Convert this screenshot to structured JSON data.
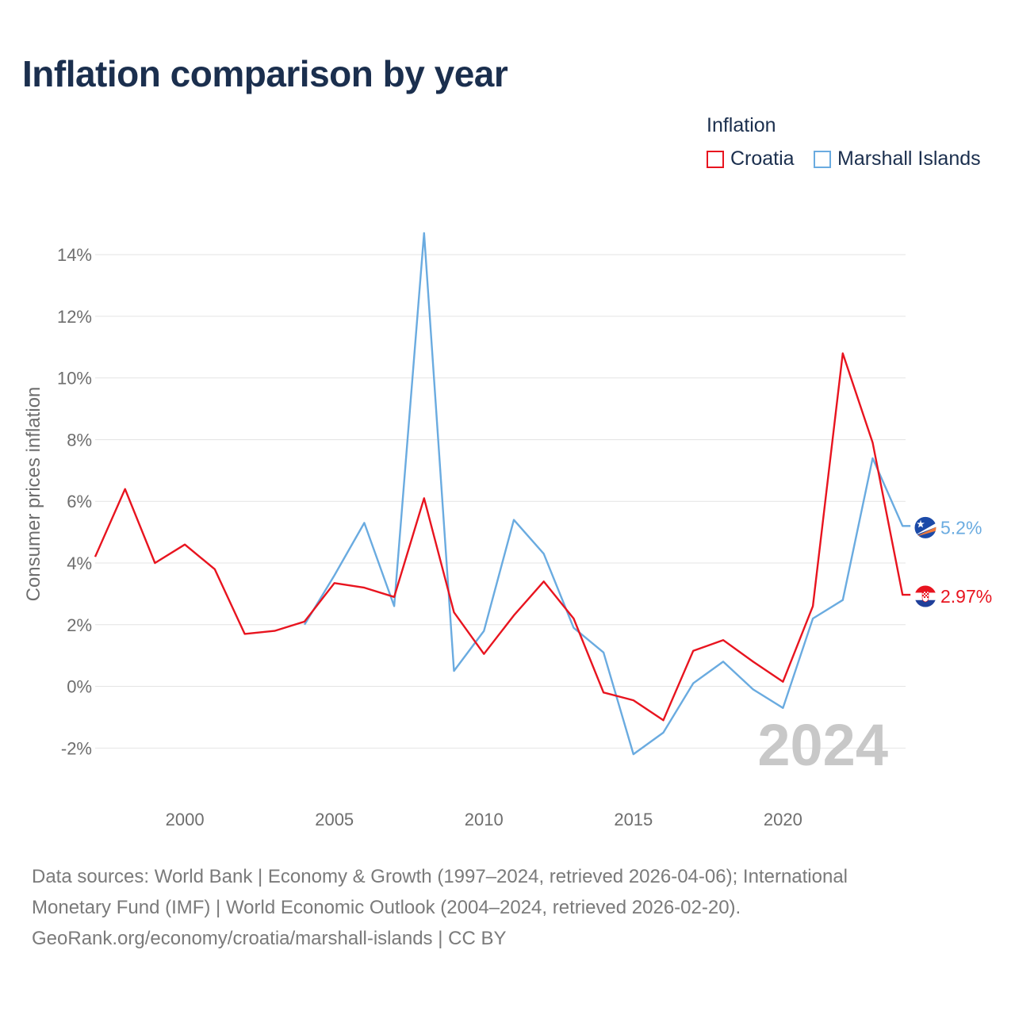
{
  "title": "Inflation comparison by year",
  "legend": {
    "title": "Inflation",
    "items": [
      {
        "name": "Croatia",
        "color": "#e8141f"
      },
      {
        "name": "Marshall Islands",
        "color": "#6aabe0"
      }
    ]
  },
  "chart_data": {
    "type": "line",
    "ylabel": "Consumer prices inflation",
    "xlabel": "",
    "ylim": [
      -3.2,
      14.8
    ],
    "yticks": [
      -2,
      0,
      2,
      4,
      6,
      8,
      10,
      12,
      14
    ],
    "ytick_labels": [
      "-2%",
      "0%",
      "2%",
      "4%",
      "6%",
      "8%",
      "10%",
      "12%",
      "14%"
    ],
    "xlim": [
      1997,
      2024.1
    ],
    "xticks": [
      2000,
      2005,
      2010,
      2015,
      2020
    ],
    "xtick_labels": [
      "2000",
      "2005",
      "2010",
      "2015",
      "2020"
    ],
    "grid": true,
    "year_watermark": "2024",
    "series": [
      {
        "name": "Croatia",
        "color": "#e8141f",
        "end_label": "2.97%",
        "flag_icon": "croatia-flag-icon",
        "x": [
          1997,
          1998,
          1999,
          2000,
          2001,
          2002,
          2003,
          2004,
          2005,
          2006,
          2007,
          2008,
          2009,
          2010,
          2011,
          2012,
          2013,
          2014,
          2015,
          2016,
          2017,
          2018,
          2019,
          2020,
          2021,
          2022,
          2023,
          2024
        ],
        "values": [
          4.2,
          6.4,
          4.0,
          4.6,
          3.8,
          1.7,
          1.8,
          2.1,
          3.35,
          3.2,
          2.9,
          6.1,
          2.4,
          1.05,
          2.3,
          3.4,
          2.2,
          -0.2,
          -0.45,
          -1.1,
          1.15,
          1.5,
          0.8,
          0.15,
          2.6,
          10.8,
          7.9,
          2.97
        ]
      },
      {
        "name": "Marshall Islands",
        "color": "#6aabe0",
        "end_label": "5.2%",
        "flag_icon": "marshall-islands-flag-icon",
        "x": [
          2004,
          2005,
          2006,
          2007,
          2008,
          2009,
          2010,
          2011,
          2012,
          2013,
          2014,
          2015,
          2016,
          2017,
          2018,
          2019,
          2020,
          2021,
          2022,
          2023,
          2024
        ],
        "values": [
          2.0,
          3.6,
          5.3,
          2.6,
          14.7,
          0.5,
          1.8,
          5.4,
          4.3,
          1.9,
          1.1,
          -2.2,
          -1.5,
          0.1,
          0.8,
          -0.1,
          -0.7,
          2.2,
          2.8,
          7.4,
          5.2
        ]
      }
    ]
  },
  "footer": {
    "line1": "Data sources: World Bank | Economy & Growth (1997–2024, retrieved 2026-04-06); International",
    "line2": "Monetary Fund (IMF) | World Economic Outlook (2004–2024, retrieved 2026-02-20).",
    "line3": "GeoRank.org/economy/croatia/marshall-islands | CC BY"
  }
}
